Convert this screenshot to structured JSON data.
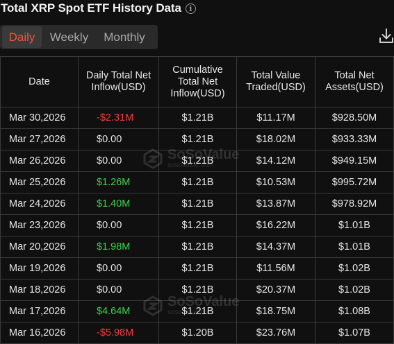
{
  "header": {
    "title": "Total XRP Spot ETF History Data",
    "info_icon": "info-icon",
    "download_icon": "download-icon"
  },
  "tabs": [
    {
      "label": "Daily",
      "active": true
    },
    {
      "label": "Weekly",
      "active": false
    },
    {
      "label": "Monthly",
      "active": false
    }
  ],
  "colors": {
    "accent_active_tab": "#f0553c",
    "negative": "#f23b3b",
    "positive": "#3fd14b",
    "background": "#101010"
  },
  "table": {
    "columns": [
      "Date",
      "Daily Total Net Inflow(USD)",
      "Cumulative Total Net Inflow(USD)",
      "Total Value Traded(USD)",
      "Total Net Assets(USD)"
    ],
    "rows": [
      {
        "date": "Mar 30,2026",
        "daily": "-$2.31M",
        "sign": "neg",
        "cumulative": "$1.21B",
        "traded": "$11.17M",
        "assets": "$928.50M"
      },
      {
        "date": "Mar 27,2026",
        "daily": "$0.00",
        "sign": "zero",
        "cumulative": "$1.21B",
        "traded": "$18.02M",
        "assets": "$933.33M"
      },
      {
        "date": "Mar 26,2026",
        "daily": "$0.00",
        "sign": "zero",
        "cumulative": "$1.21B",
        "traded": "$14.12M",
        "assets": "$949.15M"
      },
      {
        "date": "Mar 25,2026",
        "daily": "$1.26M",
        "sign": "pos",
        "cumulative": "$1.21B",
        "traded": "$10.53M",
        "assets": "$995.72M"
      },
      {
        "date": "Mar 24,2026",
        "daily": "$1.40M",
        "sign": "pos",
        "cumulative": "$1.21B",
        "traded": "$13.87M",
        "assets": "$978.92M"
      },
      {
        "date": "Mar 23,2026",
        "daily": "$0.00",
        "sign": "zero",
        "cumulative": "$1.21B",
        "traded": "$16.22M",
        "assets": "$1.01B"
      },
      {
        "date": "Mar 20,2026",
        "daily": "$1.98M",
        "sign": "pos",
        "cumulative": "$1.21B",
        "traded": "$14.37M",
        "assets": "$1.01B"
      },
      {
        "date": "Mar 19,2026",
        "daily": "$0.00",
        "sign": "zero",
        "cumulative": "$1.21B",
        "traded": "$11.56M",
        "assets": "$1.02B"
      },
      {
        "date": "Mar 18,2026",
        "daily": "$0.00",
        "sign": "zero",
        "cumulative": "$1.21B",
        "traded": "$20.37M",
        "assets": "$1.02B"
      },
      {
        "date": "Mar 17,2026",
        "daily": "$4.64M",
        "sign": "pos",
        "cumulative": "$1.21B",
        "traded": "$18.75M",
        "assets": "$1.08B"
      },
      {
        "date": "Mar 16,2026",
        "daily": "-$5.98M",
        "sign": "neg",
        "cumulative": "$1.20B",
        "traded": "$23.76M",
        "assets": "$1.07B"
      }
    ]
  },
  "watermark": {
    "name": "SoSoValue",
    "url": "sosovalue.com"
  }
}
